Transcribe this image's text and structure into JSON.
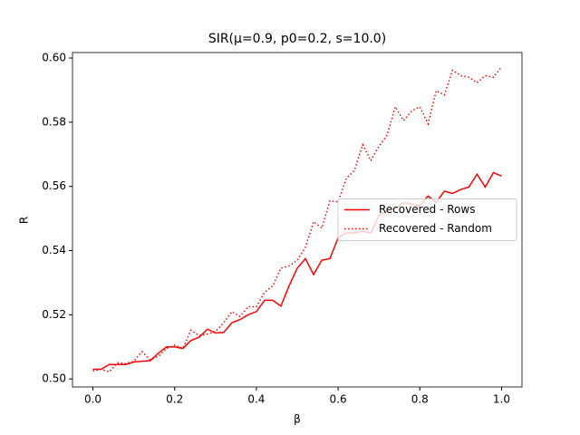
{
  "chart_data": {
    "type": "line",
    "title": "SIR(μ=0.9, p0=0.2, s=10.0)",
    "x_label": "β",
    "y_label": "R",
    "x": [
      0,
      0.02,
      0.04,
      0.06,
      0.08,
      0.1,
      0.12,
      0.14,
      0.16,
      0.18,
      0.2,
      0.22,
      0.24,
      0.26,
      0.28,
      0.3,
      0.32,
      0.34,
      0.36,
      0.38,
      0.4,
      0.42,
      0.44,
      0.46,
      0.48,
      0.5,
      0.52,
      0.54,
      0.56,
      0.58,
      0.6,
      0.62,
      0.64,
      0.66,
      0.68,
      0.7,
      0.72,
      0.74,
      0.76,
      0.78,
      0.8,
      0.82,
      0.84,
      0.86,
      0.88,
      0.9,
      0.92,
      0.94,
      0.96,
      0.98,
      1.0
    ],
    "series": [
      {
        "name": "Recovered - Rows",
        "color": "#ff0000",
        "dash": "solid",
        "values": [
          0.503,
          0.503,
          0.5045,
          0.5045,
          0.5045,
          0.5053,
          0.5055,
          0.5057,
          0.508,
          0.51,
          0.51,
          0.5095,
          0.512,
          0.513,
          0.5155,
          0.5143,
          0.5145,
          0.5175,
          0.5185,
          0.52,
          0.521,
          0.5245,
          0.5245,
          0.5227,
          0.529,
          0.5345,
          0.5375,
          0.5325,
          0.537,
          0.5375,
          0.544,
          0.5455,
          0.5455,
          0.546,
          0.5455,
          0.551,
          0.5525,
          0.553,
          0.555,
          0.5545,
          0.554,
          0.557,
          0.555,
          0.5585,
          0.5578,
          0.559,
          0.5598,
          0.5638,
          0.5598,
          0.5643,
          0.5632
        ]
      },
      {
        "name": "Recovered - Random",
        "color": "#ff0000",
        "dash": "dotted",
        "values": [
          0.5025,
          0.503,
          0.5022,
          0.505,
          0.5048,
          0.5055,
          0.5085,
          0.506,
          0.507,
          0.5095,
          0.5105,
          0.5095,
          0.5152,
          0.5135,
          0.514,
          0.5148,
          0.5175,
          0.521,
          0.5195,
          0.5225,
          0.5225,
          0.527,
          0.529,
          0.5345,
          0.5352,
          0.537,
          0.541,
          0.549,
          0.547,
          0.5555,
          0.5552,
          0.5625,
          0.565,
          0.573,
          0.568,
          0.5725,
          0.576,
          0.5848,
          0.5805,
          0.5835,
          0.5848,
          0.5795,
          0.5898,
          0.5885,
          0.5962,
          0.5945,
          0.594,
          0.5923,
          0.5945,
          0.594,
          0.5972
        ]
      }
    ],
    "xlim": [
      -0.05,
      1.05
    ],
    "ylim": [
      0.4975,
      0.6017
    ],
    "xticks": [
      {
        "value": 0,
        "label": "0.0"
      },
      0.2,
      0.4,
      0.6,
      0.8,
      {
        "value": 1,
        "label": "1.0"
      }
    ],
    "yticks": [
      {
        "value": 0.5,
        "label": "0.50"
      },
      0.52,
      0.54,
      0.56,
      0.58,
      {
        "value": 0.6,
        "label": "0.60"
      }
    ],
    "grid": false,
    "legend": "center right"
  }
}
